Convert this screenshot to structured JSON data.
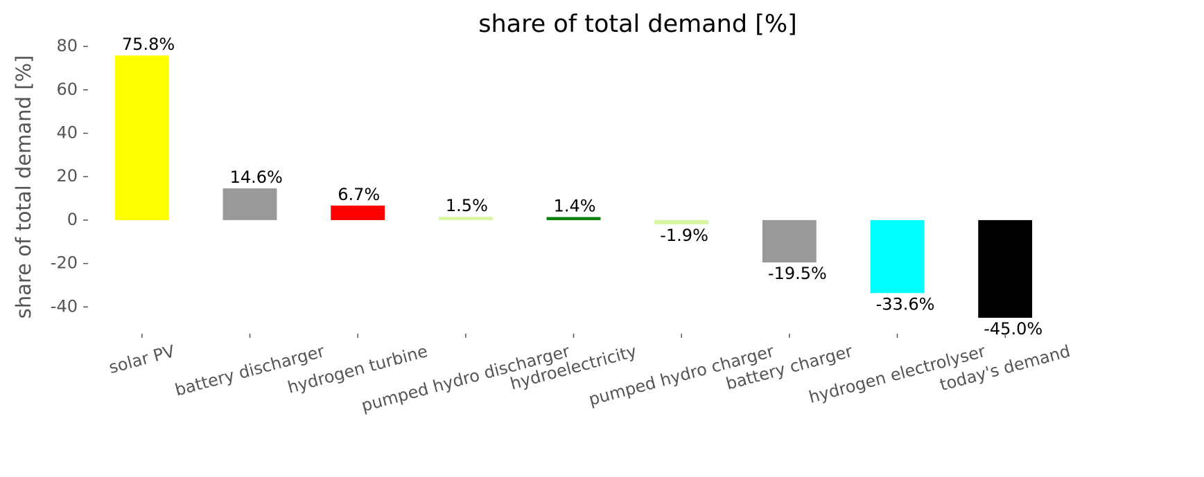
{
  "chart_data": {
    "type": "bar",
    "title": "share of total demand [%]",
    "y_label": "share of total demand [%]",
    "categories": [
      "solar PV",
      "battery discharger",
      "hydrogen turbine",
      "pumped hydro discharger",
      "hydroelectricity",
      "pumped hydro charger",
      "battery charger",
      "hydrogen electrolyser",
      "today's demand"
    ],
    "values": [
      75.8,
      14.6,
      6.7,
      1.5,
      1.4,
      -1.9,
      -19.5,
      -33.6,
      -45.0
    ],
    "value_labels": [
      "75.8%",
      "14.6%",
      "6.7%",
      "1.5%",
      "1.4%",
      "-1.9%",
      "-19.5%",
      "-33.6%",
      "-45.0%"
    ],
    "colors": [
      "#ffff00",
      "#999999",
      "#ff0000",
      "#d8f5a2",
      "#008000",
      "#d8f5a2",
      "#999999",
      "#00ffff",
      "#000000"
    ],
    "ylim": [
      -52,
      84
    ],
    "yticks": [
      -40,
      -20,
      0,
      20,
      40,
      60,
      80
    ],
    "grid": false
  }
}
